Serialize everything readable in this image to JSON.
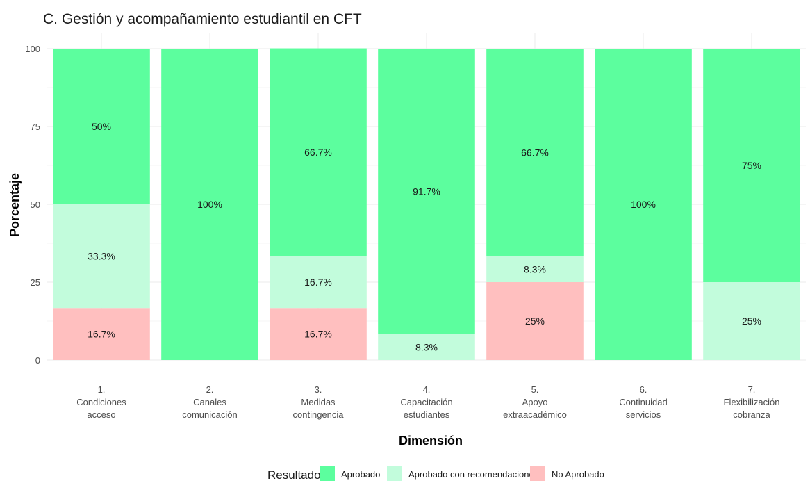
{
  "chart_data": {
    "type": "bar",
    "stacked": true,
    "title": "C. Gestión y acompañamiento estudiantil en CFT",
    "xlabel": "Dimensión",
    "ylabel": "Porcentaje",
    "ylim": [
      0,
      100
    ],
    "yticks": [
      "0",
      "25",
      "50",
      "75",
      "100"
    ],
    "grid": true,
    "categories": [
      [
        "1.",
        "Condiciones",
        "acceso"
      ],
      [
        "2.",
        "Canales",
        "comunicación"
      ],
      [
        "3.",
        "Medidas",
        "contingencia"
      ],
      [
        "4.",
        "Capacitación",
        "estudiantes"
      ],
      [
        "5.",
        "Apoyo",
        "extraacadémico"
      ],
      [
        "6.",
        "Continuidad",
        "servicios"
      ],
      [
        "7.",
        "Flexibilización",
        "cobranza"
      ]
    ],
    "series": [
      {
        "name": "No Aprobado",
        "color": "#ffbfbf",
        "values": [
          16.7,
          0,
          16.7,
          0,
          25,
          0,
          0
        ],
        "labels": [
          "16.7%",
          "",
          "16.7%",
          "",
          "25%",
          "",
          ""
        ]
      },
      {
        "name": "Aprobado con recomendaciones",
        "color": "#c2fcdc",
        "values": [
          33.3,
          0,
          16.7,
          8.3,
          8.3,
          0,
          25
        ],
        "labels": [
          "33.3%",
          "",
          "16.7%",
          "8.3%",
          "8.3%",
          "",
          "25%"
        ]
      },
      {
        "name": "Aprobado",
        "color": "#5cfe9e",
        "values": [
          50,
          100,
          66.7,
          91.7,
          66.7,
          100,
          75
        ],
        "labels": [
          "50%",
          "100%",
          "66.7%",
          "91.7%",
          "66.7%",
          "100%",
          "75%"
        ]
      }
    ],
    "legend": {
      "title": "Resultado",
      "position": "bottom",
      "order": [
        "Aprobado",
        "Aprobado con recomendaciones",
        "No Aprobado"
      ]
    }
  }
}
